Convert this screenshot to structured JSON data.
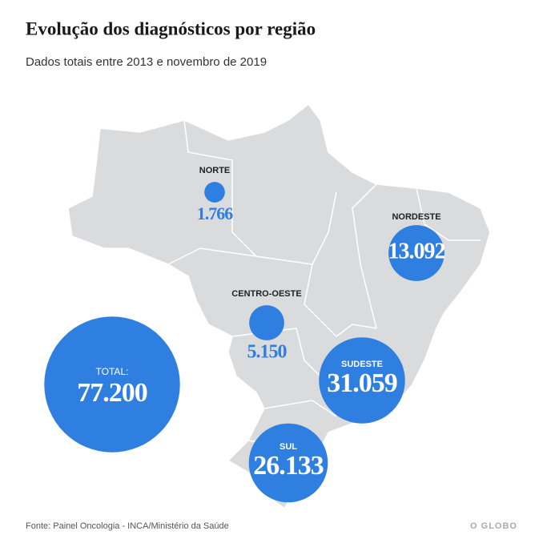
{
  "title": "Evolução dos diagnósticos por região",
  "subtitle": "Dados totais entre 2013 e novembro de 2019",
  "color": "#2e7fe0",
  "regions": [
    {
      "name": "NORTE",
      "value": 1766,
      "value_label": "1.766"
    },
    {
      "name": "CENTRO-OESTE",
      "value": 5150,
      "value_label": "5.150"
    },
    {
      "name": "NORDESTE",
      "value": 13092,
      "value_label": "13.092"
    },
    {
      "name": "SUDESTE",
      "value": 31059,
      "value_label": "31.059"
    },
    {
      "name": "SUL",
      "value": 26133,
      "value_label": "26.133"
    }
  ],
  "total": {
    "label": "TOTAL:",
    "value": 77200,
    "value_label": "77.200"
  },
  "source": "Fonte: Painel Oncologia - INCA/Ministério da Saúde",
  "brand": "O GLOBO"
}
